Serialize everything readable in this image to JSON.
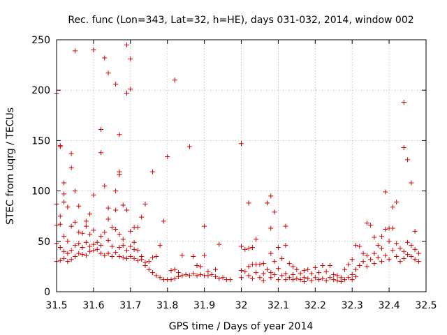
{
  "chart_data": {
    "type": "scatter",
    "title": "Rec. func (Lon=343, Lat=32, h=HE), days 031-032, 2014, window 002",
    "xlabel": "GPS time / Days of year 2014",
    "ylabel": "STEC from uqrg / TECUs",
    "xlim": [
      31.5,
      32.5
    ],
    "ylim": [
      0,
      250
    ],
    "xticks": [
      "31.5",
      "31.6",
      "31.7",
      "31.8",
      "31.9",
      "32",
      "32.1",
      "32.2",
      "32.3",
      "32.4",
      "32.5"
    ],
    "yticks": [
      "0",
      "50",
      "100",
      "150",
      "200",
      "250"
    ],
    "grid": true,
    "marker": "+",
    "color": "#d00000",
    "points": [
      [
        31.5,
        197
      ],
      [
        31.5,
        87
      ],
      [
        31.5,
        66
      ],
      [
        31.5,
        48
      ],
      [
        31.5,
        30
      ],
      [
        31.51,
        145
      ],
      [
        31.51,
        144
      ],
      [
        31.51,
        75
      ],
      [
        31.51,
        67
      ],
      [
        31.51,
        44
      ],
      [
        31.51,
        31
      ],
      [
        31.52,
        108
      ],
      [
        31.52,
        97
      ],
      [
        31.52,
        89
      ],
      [
        31.52,
        55
      ],
      [
        31.52,
        40
      ],
      [
        31.52,
        33
      ],
      [
        31.53,
        84
      ],
      [
        31.53,
        50
      ],
      [
        31.53,
        38
      ],
      [
        31.53,
        30
      ],
      [
        31.54,
        137
      ],
      [
        31.54,
        123
      ],
      [
        31.54,
        65
      ],
      [
        31.54,
        41
      ],
      [
        31.54,
        32
      ],
      [
        31.55,
        239
      ],
      [
        31.55,
        100
      ],
      [
        31.55,
        69
      ],
      [
        31.55,
        46
      ],
      [
        31.55,
        35
      ],
      [
        31.56,
        85
      ],
      [
        31.56,
        59
      ],
      [
        31.56,
        48
      ],
      [
        31.56,
        38
      ],
      [
        31.57,
        58
      ],
      [
        31.57,
        44
      ],
      [
        31.57,
        37
      ],
      [
        31.58,
        70
      ],
      [
        31.58,
        65
      ],
      [
        31.58,
        49
      ],
      [
        31.58,
        36
      ],
      [
        31.59,
        77
      ],
      [
        31.59,
        57
      ],
      [
        31.59,
        45
      ],
      [
        31.59,
        40
      ],
      [
        31.6,
        240
      ],
      [
        31.6,
        96
      ],
      [
        31.6,
        61
      ],
      [
        31.6,
        47
      ],
      [
        31.6,
        41
      ],
      [
        31.61,
        49
      ],
      [
        31.61,
        42
      ],
      [
        31.62,
        161
      ],
      [
        31.62,
        138
      ],
      [
        31.62,
        55
      ],
      [
        31.62,
        46
      ],
      [
        31.62,
        38
      ],
      [
        31.63,
        232
      ],
      [
        31.63,
        105
      ],
      [
        31.63,
        59
      ],
      [
        31.63,
        36
      ],
      [
        31.64,
        217
      ],
      [
        31.64,
        83
      ],
      [
        31.64,
        72
      ],
      [
        31.64,
        51
      ],
      [
        31.64,
        38
      ],
      [
        31.65,
        64
      ],
      [
        31.65,
        45
      ],
      [
        31.65,
        35
      ],
      [
        31.66,
        206
      ],
      [
        31.66,
        100
      ],
      [
        31.66,
        81
      ],
      [
        31.66,
        62
      ],
      [
        31.66,
        39
      ],
      [
        31.67,
        156
      ],
      [
        31.67,
        119
      ],
      [
        31.67,
        116
      ],
      [
        31.67,
        57
      ],
      [
        31.67,
        44
      ],
      [
        31.67,
        35
      ],
      [
        31.68,
        86
      ],
      [
        31.68,
        52
      ],
      [
        31.68,
        46
      ],
      [
        31.68,
        34
      ],
      [
        31.69,
        245
      ],
      [
        31.69,
        197
      ],
      [
        31.69,
        81
      ],
      [
        31.69,
        41
      ],
      [
        31.69,
        33
      ],
      [
        31.7,
        231
      ],
      [
        31.7,
        201
      ],
      [
        31.7,
        60
      ],
      [
        31.7,
        45
      ],
      [
        31.7,
        35
      ],
      [
        31.71,
        64
      ],
      [
        31.71,
        49
      ],
      [
        31.71,
        42
      ],
      [
        31.71,
        33
      ],
      [
        31.72,
        64
      ],
      [
        31.72,
        41
      ],
      [
        31.72,
        31
      ],
      [
        31.73,
        74
      ],
      [
        31.73,
        35
      ],
      [
        31.73,
        32
      ],
      [
        31.74,
        87
      ],
      [
        31.74,
        29
      ],
      [
        31.74,
        26
      ],
      [
        31.75,
        30
      ],
      [
        31.75,
        22
      ],
      [
        31.76,
        119
      ],
      [
        31.76,
        34
      ],
      [
        31.76,
        19
      ],
      [
        31.77,
        35
      ],
      [
        31.77,
        16
      ],
      [
        31.78,
        46
      ],
      [
        31.78,
        14
      ],
      [
        31.79,
        70
      ],
      [
        31.79,
        12
      ],
      [
        31.8,
        134
      ],
      [
        31.8,
        12
      ],
      [
        31.81,
        21
      ],
      [
        31.81,
        12
      ],
      [
        31.82,
        210
      ],
      [
        31.82,
        22
      ],
      [
        31.82,
        13
      ],
      [
        31.83,
        19
      ],
      [
        31.83,
        15
      ],
      [
        31.84,
        36
      ],
      [
        31.84,
        16
      ],
      [
        31.85,
        17
      ],
      [
        31.86,
        144
      ],
      [
        31.86,
        16
      ],
      [
        31.87,
        35
      ],
      [
        31.87,
        18
      ],
      [
        31.88,
        26
      ],
      [
        31.88,
        16
      ],
      [
        31.89,
        25
      ],
      [
        31.89,
        17
      ],
      [
        31.9,
        65
      ],
      [
        31.9,
        36
      ],
      [
        31.9,
        16
      ],
      [
        31.91,
        20
      ],
      [
        31.91,
        16
      ],
      [
        31.92,
        17
      ],
      [
        31.93,
        22
      ],
      [
        31.93,
        15
      ],
      [
        31.94,
        47
      ],
      [
        31.94,
        13
      ],
      [
        31.95,
        14
      ],
      [
        31.96,
        12
      ],
      [
        31.97,
        12
      ],
      [
        32.0,
        147
      ],
      [
        32.0,
        45
      ],
      [
        32.0,
        21
      ],
      [
        32.0,
        14
      ],
      [
        32.01,
        42
      ],
      [
        32.01,
        20
      ],
      [
        32.02,
        88
      ],
      [
        32.02,
        43
      ],
      [
        32.02,
        25
      ],
      [
        32.02,
        16
      ],
      [
        32.03,
        44
      ],
      [
        32.03,
        27
      ],
      [
        32.03,
        13
      ],
      [
        32.04,
        52
      ],
      [
        32.04,
        27
      ],
      [
        32.04,
        19
      ],
      [
        32.05,
        27
      ],
      [
        32.05,
        14
      ],
      [
        32.06,
        28
      ],
      [
        32.06,
        18
      ],
      [
        32.06,
        11
      ],
      [
        32.07,
        88
      ],
      [
        32.07,
        22
      ],
      [
        32.08,
        95
      ],
      [
        32.08,
        63
      ],
      [
        32.08,
        38
      ],
      [
        32.08,
        19
      ],
      [
        32.08,
        14
      ],
      [
        32.09,
        79
      ],
      [
        32.09,
        30
      ],
      [
        32.09,
        17
      ],
      [
        32.1,
        44
      ],
      [
        32.1,
        23
      ],
      [
        32.1,
        12
      ],
      [
        32.11,
        33
      ],
      [
        32.11,
        16
      ],
      [
        32.12,
        65
      ],
      [
        32.12,
        46
      ],
      [
        32.12,
        18
      ],
      [
        32.12,
        12
      ],
      [
        32.13,
        28
      ],
      [
        32.13,
        14
      ],
      [
        32.14,
        25
      ],
      [
        32.14,
        17
      ],
      [
        32.14,
        12
      ],
      [
        32.15,
        22
      ],
      [
        32.15,
        13
      ],
      [
        32.16,
        18
      ],
      [
        32.16,
        12
      ],
      [
        32.17,
        21
      ],
      [
        32.17,
        14
      ],
      [
        32.17,
        10
      ],
      [
        32.18,
        22
      ],
      [
        32.18,
        13
      ],
      [
        32.19,
        18
      ],
      [
        32.19,
        11
      ],
      [
        32.2,
        24
      ],
      [
        32.2,
        14
      ],
      [
        32.21,
        19
      ],
      [
        32.21,
        12
      ],
      [
        32.22,
        26
      ],
      [
        32.22,
        13
      ],
      [
        32.23,
        20
      ],
      [
        32.23,
        11
      ],
      [
        32.24,
        26
      ],
      [
        32.24,
        14
      ],
      [
        32.25,
        17
      ],
      [
        32.25,
        12
      ],
      [
        32.26,
        16
      ],
      [
        32.26,
        11
      ],
      [
        32.27,
        14
      ],
      [
        32.27,
        10
      ],
      [
        32.28,
        22
      ],
      [
        32.28,
        12
      ],
      [
        32.29,
        27
      ],
      [
        32.29,
        14
      ],
      [
        32.3,
        32
      ],
      [
        32.3,
        17
      ],
      [
        32.3,
        12
      ],
      [
        32.31,
        46
      ],
      [
        32.31,
        22
      ],
      [
        32.31,
        15
      ],
      [
        32.32,
        45
      ],
      [
        32.32,
        26
      ],
      [
        32.33,
        38
      ],
      [
        32.33,
        30
      ],
      [
        32.34,
        68
      ],
      [
        32.34,
        36
      ],
      [
        32.34,
        25
      ],
      [
        32.35,
        66
      ],
      [
        32.35,
        32
      ],
      [
        32.36,
        54
      ],
      [
        32.36,
        38
      ],
      [
        32.36,
        28
      ],
      [
        32.37,
        46
      ],
      [
        32.37,
        34
      ],
      [
        32.38,
        55
      ],
      [
        32.38,
        43
      ],
      [
        32.38,
        30
      ],
      [
        32.39,
        99
      ],
      [
        32.39,
        62
      ],
      [
        32.39,
        36
      ],
      [
        32.4,
        63
      ],
      [
        32.4,
        50
      ],
      [
        32.4,
        32
      ],
      [
        32.41,
        84
      ],
      [
        32.41,
        63
      ],
      [
        32.41,
        41
      ],
      [
        32.42,
        89
      ],
      [
        32.42,
        48
      ],
      [
        32.42,
        35
      ],
      [
        32.43,
        43
      ],
      [
        32.43,
        30
      ],
      [
        32.44,
        188
      ],
      [
        32.44,
        143
      ],
      [
        32.44,
        40
      ],
      [
        32.44,
        33
      ],
      [
        32.45,
        131
      ],
      [
        32.45,
        49
      ],
      [
        32.45,
        37
      ],
      [
        32.46,
        108
      ],
      [
        32.46,
        46
      ],
      [
        32.46,
        35
      ],
      [
        32.47,
        60
      ],
      [
        32.47,
        42
      ],
      [
        32.47,
        32
      ],
      [
        32.48,
        38
      ],
      [
        32.48,
        30
      ]
    ]
  }
}
